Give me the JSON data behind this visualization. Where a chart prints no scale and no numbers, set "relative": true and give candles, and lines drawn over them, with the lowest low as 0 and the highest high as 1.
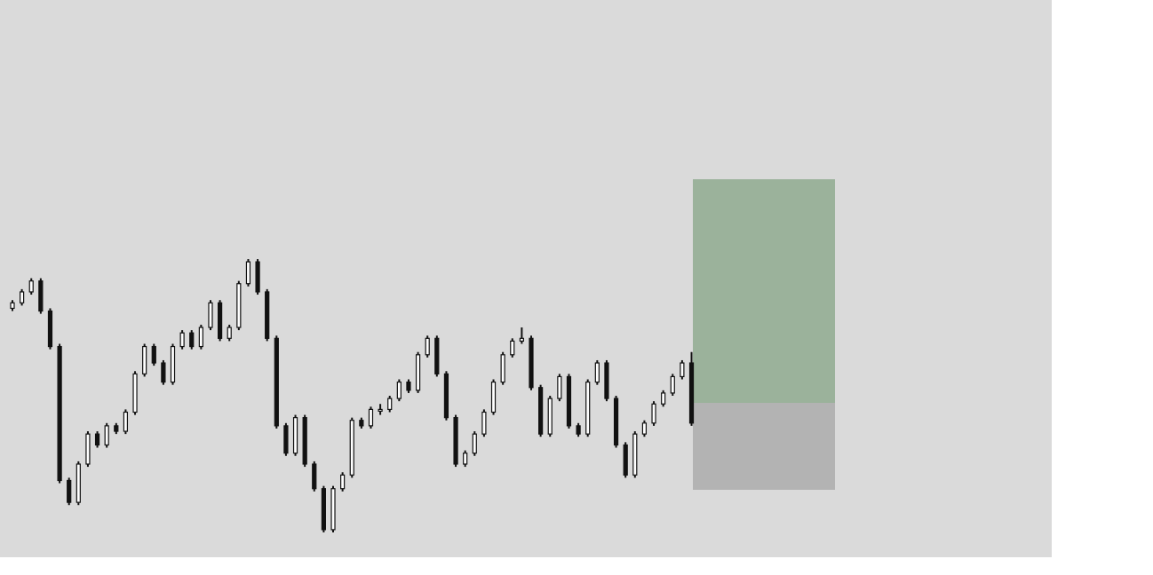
{
  "chart_data": {
    "type": "candlestick",
    "relative": true,
    "color": "#111111",
    "categories": [
      null,
      null,
      null,
      null,
      null,
      null,
      null,
      null,
      null,
      null,
      null,
      null,
      null,
      null,
      null,
      null,
      null,
      null,
      null,
      null,
      null,
      null,
      null,
      null,
      null,
      null,
      null,
      null,
      null,
      null,
      null,
      null,
      null,
      null,
      null,
      null,
      null,
      null,
      null,
      null,
      null,
      null,
      null,
      null,
      null,
      null,
      null,
      null,
      null,
      null,
      null,
      null,
      null,
      null,
      null,
      null,
      null,
      null,
      null,
      null,
      null,
      null,
      null,
      null,
      null,
      null,
      null,
      null,
      null,
      null,
      null,
      null,
      null
    ],
    "ohlc": [
      [
        0.82,
        0.85,
        0.81,
        0.84
      ],
      [
        0.84,
        0.89,
        0.83,
        0.88
      ],
      [
        0.88,
        0.93,
        0.87,
        0.92
      ],
      [
        0.92,
        0.93,
        0.8,
        0.81
      ],
      [
        0.81,
        0.82,
        0.67,
        0.68
      ],
      [
        0.68,
        0.69,
        0.18,
        0.19
      ],
      [
        0.19,
        0.2,
        0.1,
        0.11
      ],
      [
        0.11,
        0.26,
        0.1,
        0.25
      ],
      [
        0.25,
        0.37,
        0.24,
        0.36
      ],
      [
        0.36,
        0.37,
        0.31,
        0.32
      ],
      [
        0.32,
        0.4,
        0.31,
        0.39
      ],
      [
        0.39,
        0.4,
        0.36,
        0.37
      ],
      [
        0.37,
        0.45,
        0.36,
        0.44
      ],
      [
        0.44,
        0.59,
        0.43,
        0.58
      ],
      [
        0.58,
        0.69,
        0.57,
        0.68
      ],
      [
        0.68,
        0.69,
        0.61,
        0.62
      ],
      [
        0.62,
        0.63,
        0.54,
        0.55
      ],
      [
        0.55,
        0.69,
        0.54,
        0.68
      ],
      [
        0.68,
        0.74,
        0.67,
        0.73
      ],
      [
        0.73,
        0.74,
        0.67,
        0.68
      ],
      [
        0.68,
        0.76,
        0.67,
        0.75
      ],
      [
        0.75,
        0.85,
        0.74,
        0.84
      ],
      [
        0.84,
        0.85,
        0.7,
        0.71
      ],
      [
        0.71,
        0.76,
        0.7,
        0.75
      ],
      [
        0.75,
        0.92,
        0.74,
        0.91
      ],
      [
        0.91,
        1.0,
        0.9,
        0.99
      ],
      [
        0.99,
        1.0,
        0.87,
        0.88
      ],
      [
        0.88,
        0.89,
        0.7,
        0.71
      ],
      [
        0.71,
        0.72,
        0.38,
        0.39
      ],
      [
        0.39,
        0.4,
        0.28,
        0.29
      ],
      [
        0.29,
        0.43,
        0.28,
        0.42
      ],
      [
        0.42,
        0.43,
        0.24,
        0.25
      ],
      [
        0.25,
        0.26,
        0.15,
        0.16
      ],
      [
        0.16,
        0.17,
        0.0,
        0.01
      ],
      [
        0.01,
        0.17,
        0.0,
        0.16
      ],
      [
        0.16,
        0.22,
        0.15,
        0.21
      ],
      [
        0.21,
        0.42,
        0.2,
        0.41
      ],
      [
        0.41,
        0.42,
        0.38,
        0.39
      ],
      [
        0.39,
        0.46,
        0.38,
        0.45
      ],
      [
        0.45,
        0.47,
        0.43,
        0.45
      ],
      [
        0.45,
        0.5,
        0.44,
        0.49
      ],
      [
        0.49,
        0.56,
        0.48,
        0.55
      ],
      [
        0.55,
        0.56,
        0.51,
        0.52
      ],
      [
        0.52,
        0.66,
        0.51,
        0.65
      ],
      [
        0.65,
        0.72,
        0.64,
        0.71
      ],
      [
        0.71,
        0.72,
        0.57,
        0.58
      ],
      [
        0.58,
        0.59,
        0.41,
        0.42
      ],
      [
        0.42,
        0.43,
        0.24,
        0.25
      ],
      [
        0.25,
        0.3,
        0.24,
        0.29
      ],
      [
        0.29,
        0.37,
        0.28,
        0.36
      ],
      [
        0.36,
        0.45,
        0.35,
        0.44
      ],
      [
        0.44,
        0.56,
        0.43,
        0.55
      ],
      [
        0.55,
        0.66,
        0.54,
        0.65
      ],
      [
        0.65,
        0.71,
        0.64,
        0.7
      ],
      [
        0.7,
        0.75,
        0.69,
        0.71
      ],
      [
        0.71,
        0.72,
        0.52,
        0.53
      ],
      [
        0.53,
        0.54,
        0.35,
        0.36
      ],
      [
        0.36,
        0.5,
        0.35,
        0.49
      ],
      [
        0.49,
        0.58,
        0.48,
        0.57
      ],
      [
        0.57,
        0.58,
        0.38,
        0.39
      ],
      [
        0.39,
        0.4,
        0.35,
        0.36
      ],
      [
        0.36,
        0.56,
        0.35,
        0.55
      ],
      [
        0.55,
        0.63,
        0.54,
        0.62
      ],
      [
        0.62,
        0.63,
        0.48,
        0.49
      ],
      [
        0.49,
        0.5,
        0.31,
        0.32
      ],
      [
        0.32,
        0.33,
        0.2,
        0.21
      ],
      [
        0.21,
        0.37,
        0.2,
        0.36
      ],
      [
        0.36,
        0.41,
        0.35,
        0.4
      ],
      [
        0.4,
        0.48,
        0.39,
        0.47
      ],
      [
        0.47,
        0.52,
        0.46,
        0.51
      ],
      [
        0.51,
        0.58,
        0.5,
        0.57
      ],
      [
        0.57,
        0.63,
        0.56,
        0.62
      ],
      [
        0.62,
        0.66,
        0.39,
        0.4
      ]
    ]
  }
}
